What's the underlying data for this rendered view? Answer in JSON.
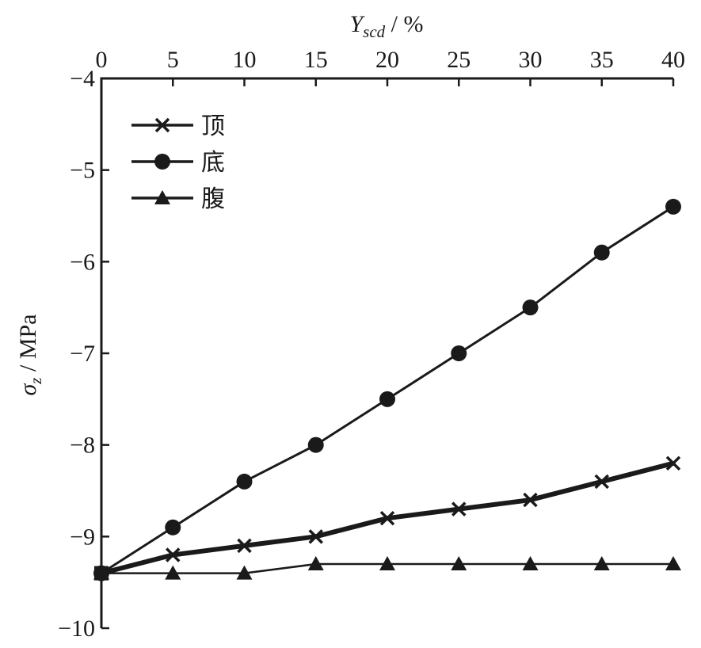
{
  "chart_data": {
    "type": "line",
    "xlabel": "Y",
    "xlabel_subscript": "scd",
    "xlabel_unit": " / %",
    "ylabel": "σ",
    "ylabel_subscript": "z",
    "ylabel_unit": " / MPa",
    "x_axis_position": "top",
    "xlim": [
      0,
      40
    ],
    "ylim": [
      -10,
      -4
    ],
    "x_ticks": [
      0,
      5,
      10,
      15,
      20,
      25,
      30,
      35,
      40
    ],
    "y_ticks": [
      -4,
      -5,
      -6,
      -7,
      -8,
      -9,
      -10
    ],
    "x_tick_labels": [
      "0",
      "5",
      "10",
      "15",
      "20",
      "25",
      "30",
      "35",
      "40"
    ],
    "y_tick_labels": [
      "−4",
      "−5",
      "−6",
      "−7",
      "−8",
      "−9",
      "−10"
    ],
    "grid": false,
    "legend_position": "top-left",
    "x": [
      0,
      5,
      10,
      15,
      20,
      25,
      30,
      35,
      40
    ],
    "series": [
      {
        "name": "顶",
        "marker": "x",
        "values": [
          -9.4,
          -9.2,
          -9.1,
          -9.0,
          -8.8,
          -8.7,
          -8.6,
          -8.4,
          -8.2
        ]
      },
      {
        "name": "底",
        "marker": "circle",
        "values": [
          -9.4,
          -8.9,
          -8.4,
          -8.0,
          -7.5,
          -7.0,
          -6.5,
          -5.9,
          -5.4
        ]
      },
      {
        "name": "腹",
        "marker": "triangle",
        "values": [
          -9.4,
          -9.4,
          -9.4,
          -9.3,
          -9.3,
          -9.3,
          -9.3,
          -9.3,
          -9.3
        ]
      }
    ]
  }
}
